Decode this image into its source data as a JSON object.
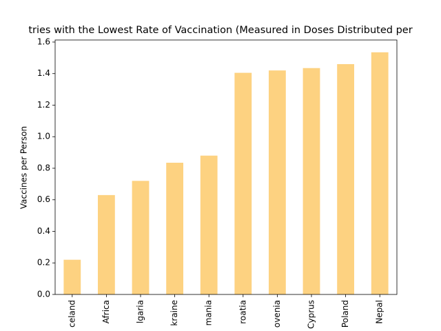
{
  "chart_data": {
    "type": "bar",
    "title": "tries with the Lowest Rate of Vaccination (Measured in Doses Distributed per",
    "ylabel": "Vaccines per Person",
    "categories": [
      "celand",
      "Africa",
      "lgaria",
      "kraine",
      "mania",
      "roatia",
      "ovenia",
      "Cyprus",
      "Poland",
      "Nepal"
    ],
    "values": [
      0.22,
      0.63,
      0.72,
      0.835,
      0.88,
      1.405,
      1.42,
      1.435,
      1.46,
      1.535
    ],
    "color": "#fdd281",
    "ylim": [
      0,
      1.613
    ],
    "yticks": [
      0.0,
      0.2,
      0.4,
      0.6,
      0.8,
      1.0,
      1.2,
      1.4,
      1.6
    ],
    "ytick_labels": [
      "0.0",
      "0.2",
      "0.4",
      "0.6",
      "0.8",
      "1.0",
      "1.2",
      "1.4",
      "1.6"
    ],
    "grid": false
  }
}
